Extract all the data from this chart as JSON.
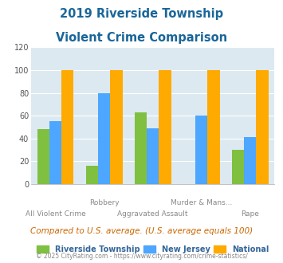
{
  "title_line1": "2019 Riverside Township",
  "title_line2": "Violent Crime Comparison",
  "categories": [
    "All Violent Crime",
    "Robbery",
    "Aggravated Assault",
    "Murder & Mans...",
    "Rape"
  ],
  "label_row1": [
    "",
    "Robbery",
    "",
    "Murder & Mans...",
    ""
  ],
  "label_row2": [
    "All Violent Crime",
    "",
    "Aggravated Assault",
    "",
    "Rape"
  ],
  "riverside": [
    48,
    16,
    63,
    0,
    30
  ],
  "new_jersey": [
    55,
    80,
    49,
    60,
    41
  ],
  "national": [
    100,
    100,
    100,
    100,
    100
  ],
  "colors": {
    "riverside": "#80c040",
    "new_jersey": "#4da6ff",
    "national": "#ffaa00"
  },
  "ylim": [
    0,
    120
  ],
  "yticks": [
    0,
    20,
    40,
    60,
    80,
    100,
    120
  ],
  "plot_bg": "#dce9f0",
  "title_color": "#1a6699",
  "legend_label_color": "#336699",
  "footnote1": "Compared to U.S. average. (U.S. average equals 100)",
  "footnote2": "© 2025 CityRating.com - https://www.cityrating.com/crime-statistics/",
  "legend_labels": [
    "Riverside Township",
    "New Jersey",
    "National"
  ],
  "bar_width": 0.25
}
